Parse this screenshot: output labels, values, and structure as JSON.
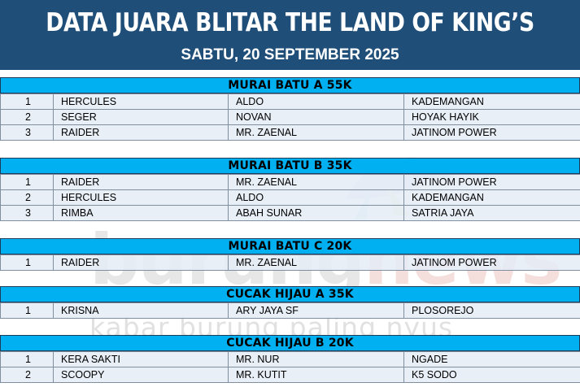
{
  "header": {
    "title": "DATA JUARA BLITAR THE LAND OF KING’S",
    "date": "SABTU, 20 SEPTEMBER 2025"
  },
  "watermark": {
    "logo_part1": "burung",
    "logo_part2": "news",
    "tagline": "kabar burung paling nyus"
  },
  "colors": {
    "header_bg": "#1f4e79",
    "category_bg": "#00b0f0",
    "row_bg": "#e4ecf6"
  },
  "categories": [
    {
      "name": "MURAI BATU A 55K",
      "rows": [
        {
          "rank": "1",
          "bird": "HERCULES",
          "owner": "ALDO",
          "team": "KADEMANGAN"
        },
        {
          "rank": "2",
          "bird": "SEGER",
          "owner": "NOVAN",
          "team": "HOYAK HAYIK"
        },
        {
          "rank": "3",
          "bird": "RAIDER",
          "owner": "MR. ZAENAL",
          "team": "JATINOM POWER"
        }
      ]
    },
    {
      "name": "MURAI BATU B 35K",
      "rows": [
        {
          "rank": "1",
          "bird": "RAIDER",
          "owner": "MR. ZAENAL",
          "team": "JATINOM POWER"
        },
        {
          "rank": "2",
          "bird": "HERCULES",
          "owner": "ALDO",
          "team": "KADEMANGAN"
        },
        {
          "rank": "3",
          "bird": "RIMBA",
          "owner": "ABAH SUNAR",
          "team": "SATRIA JAYA"
        }
      ]
    },
    {
      "name": "MURAI BATU C 20K",
      "rows": [
        {
          "rank": "1",
          "bird": "RAIDER",
          "owner": "MR. ZAENAL",
          "team": "JATINOM POWER"
        }
      ]
    },
    {
      "name": "CUCAK HIJAU A 35K",
      "rows": [
        {
          "rank": "1",
          "bird": "KRISNA",
          "owner": "ARY JAYA SF",
          "team": "PLOSOREJO"
        }
      ]
    },
    {
      "name": "CUCAK HIJAU B 20K",
      "rows": [
        {
          "rank": "1",
          "bird": "KERA SAKTI",
          "owner": "MR. NUR",
          "team": "NGADE"
        },
        {
          "rank": "2",
          "bird": "SCOOPY",
          "owner": "MR. KUTIT",
          "team": "K5 SODO"
        }
      ]
    }
  ]
}
